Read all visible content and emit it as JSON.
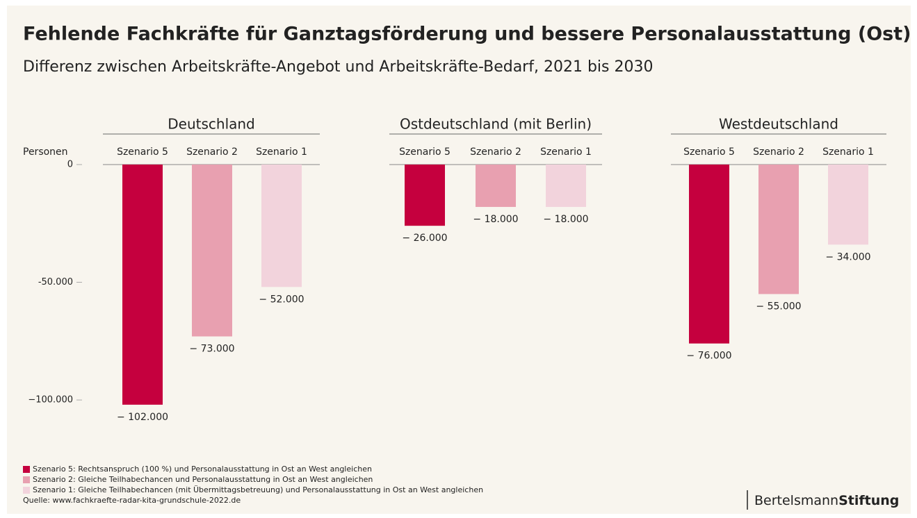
{
  "title": "Fehlende Fachkräfte für Ganztagsförderung und bessere Personalausstattung (Ost)",
  "subtitle": "Differenz zwischen Arbeitskräfte-Angebot und Arbeitskräfte-Bedarf, 2021 bis 2030",
  "y_label": "Personen",
  "legend": [
    {
      "label": "Szenario 5: Rechtsanspruch (100 %) und Personalausstattung in Ost an West angleichen",
      "color": "#c5003e"
    },
    {
      "label": "Szenario 2: Gleiche Teilhabechancen und Personalausstattung in Ost an West angleichen",
      "color": "#e8a0b0"
    },
    {
      "label": "Szenario 1: Gleiche Teilhabechancen (mit Übermittagsbetreuung) und Personalausstattung in Ost an West angleichen",
      "color": "#f2d3dc"
    }
  ],
  "source": "Quelle: www.fachkraefte-radar-kita-grundschule-2022.de",
  "logo": {
    "name": "Bertelsmann",
    "bold": "Stiftung"
  },
  "chart_data": [
    {
      "type": "bar",
      "title": "Deutschland",
      "categories": [
        "Szenario 5",
        "Szenario 2",
        "Szenario 1"
      ],
      "values": [
        -102000,
        -73000,
        -52000
      ],
      "value_labels": [
        "− 102.000",
        "− 73.000",
        "− 52.000"
      ],
      "colors": [
        "#c5003e",
        "#e8a0b0",
        "#f2d3dc"
      ],
      "ylim": [
        -105000,
        0
      ],
      "yticks": [
        0,
        {
          "value": -50000,
          "label": "-50.000"
        },
        {
          "value": -100000,
          "label": "−100.000"
        }
      ]
    },
    {
      "type": "bar",
      "title": "Ostdeutschland (mit Berlin)",
      "categories": [
        "Szenario 5",
        "Szenario 2",
        "Szenario 1"
      ],
      "values": [
        -26000,
        -18000,
        -18000
      ],
      "value_labels": [
        "− 26.000",
        "− 18.000",
        "− 18.000"
      ],
      "colors": [
        "#c5003e",
        "#e8a0b0",
        "#f2d3dc"
      ],
      "ylim": [
        -105000,
        0
      ]
    },
    {
      "type": "bar",
      "title": "Westdeutschland",
      "categories": [
        "Szenario 5",
        "Szenario 2",
        "Szenario 1"
      ],
      "values": [
        -76000,
        -55000,
        -34000
      ],
      "value_labels": [
        "− 76.000",
        "− 55.000",
        "− 34.000"
      ],
      "colors": [
        "#c5003e",
        "#e8a0b0",
        "#f2d3dc"
      ],
      "ylim": [
        -105000,
        0
      ]
    }
  ]
}
